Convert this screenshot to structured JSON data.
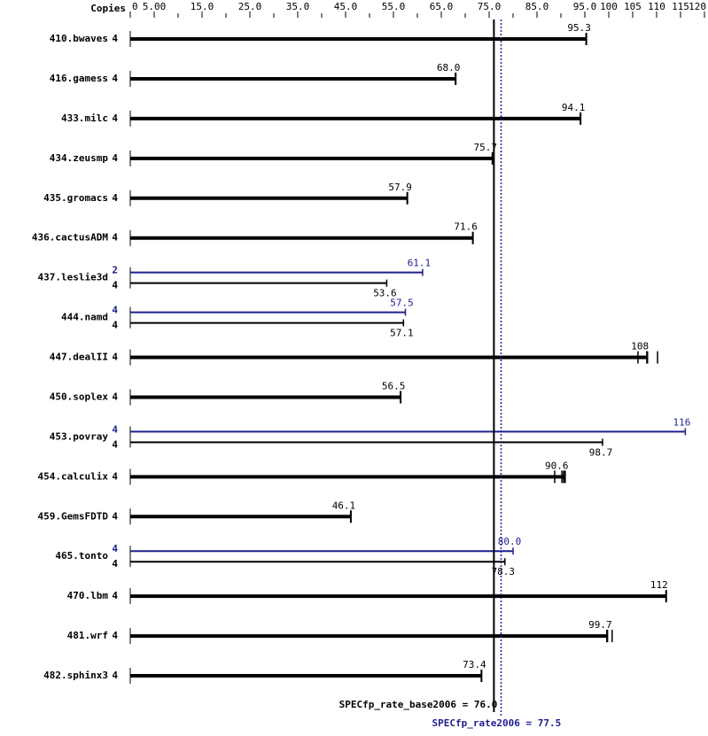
{
  "chart_data": {
    "type": "bar",
    "orientation": "horizontal",
    "copies_header": "Copies",
    "categories": [
      "410.bwaves",
      "416.gamess",
      "433.milc",
      "434.zeusmp",
      "435.gromacs",
      "436.cactusADM",
      "437.leslie3d",
      "444.namd",
      "447.dealII",
      "450.soplex",
      "453.povray",
      "454.calculix",
      "459.GemsFDTD",
      "465.tonto",
      "470.lbm",
      "481.wrf",
      "482.sphinx3"
    ],
    "series": [
      {
        "color": "#000000",
        "copies": [
          4,
          4,
          4,
          4,
          4,
          4,
          4,
          4,
          4,
          4,
          4,
          4,
          4,
          4,
          4,
          4,
          4
        ],
        "values": [
          95.3,
          68.0,
          94.1,
          75.7,
          57.9,
          71.6,
          53.6,
          57.1,
          108,
          56.5,
          98.7,
          90.6,
          46.1,
          78.3,
          112,
          99.7,
          73.4
        ],
        "value_labels": [
          "95.3",
          "68.0",
          "94.1",
          "75.7",
          "57.9",
          "71.6",
          "53.6",
          "57.1",
          "108",
          "56.5",
          "98.7",
          "90.6",
          "46.1",
          "78.3",
          "112",
          "99.7",
          "73.4"
        ],
        "runs": [
          null,
          null,
          null,
          null,
          null,
          null,
          null,
          null,
          [
            106.1,
            108.1,
            110.2
          ],
          null,
          null,
          [
            88.7,
            90.2,
            90.9
          ],
          null,
          null,
          null,
          [
            99.6,
            100.7
          ],
          null
        ]
      },
      {
        "color": "#1f1f8f",
        "copies": [
          null,
          null,
          null,
          null,
          null,
          null,
          2,
          4,
          null,
          null,
          4,
          null,
          null,
          4,
          null,
          null,
          null
        ],
        "values": [
          null,
          null,
          null,
          null,
          null,
          null,
          61.1,
          57.5,
          null,
          null,
          116,
          null,
          null,
          80.0,
          null,
          null,
          null
        ],
        "value_labels": [
          null,
          null,
          null,
          null,
          null,
          null,
          "61.1",
          "57.5",
          null,
          null,
          "116",
          null,
          null,
          "80.0",
          null,
          null,
          null
        ]
      }
    ],
    "xlim": [
      0,
      120
    ],
    "xticks": [
      0,
      {
        "value": 5,
        "label": "5.00"
      },
      {
        "value": 15,
        "label": "15.0"
      },
      {
        "value": 25,
        "label": "25.0"
      },
      {
        "value": 35,
        "label": "35.0"
      },
      {
        "value": 45,
        "label": "45.0"
      },
      {
        "value": 55,
        "label": "55.0"
      },
      {
        "value": 65,
        "label": "65.0"
      },
      {
        "value": 75,
        "label": "75.0"
      },
      {
        "value": 85,
        "label": "85.0"
      },
      {
        "value": 95,
        "label": "95.0"
      },
      100,
      105,
      110,
      115,
      120
    ],
    "minor_xticks": [
      10,
      20,
      30,
      40,
      50,
      60,
      70,
      80,
      90
    ],
    "reference_lines": [
      {
        "value": 76.0,
        "label": "SPECfp_rate_base2006 = 76.0",
        "color": "#000000",
        "style": "solid"
      },
      {
        "value": 77.5,
        "label": "SPECfp_rate2006 = 77.5",
        "color": "#1f1f8f",
        "style": "dotted"
      }
    ]
  }
}
